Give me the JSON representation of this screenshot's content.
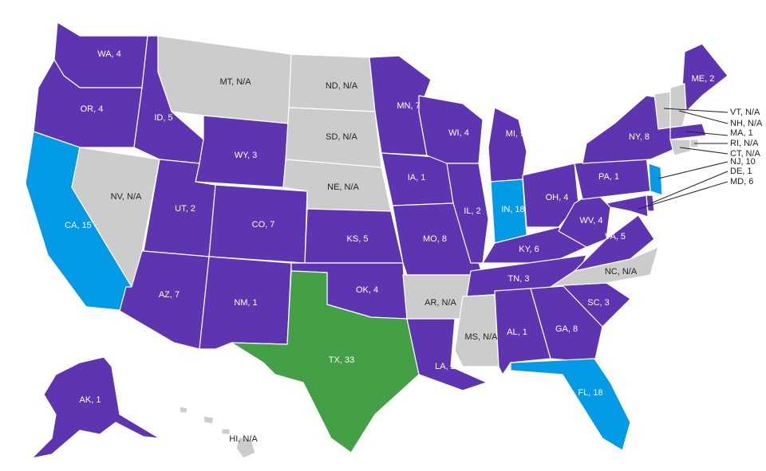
{
  "colors": {
    "purple": "#5e35b1",
    "gray": "#cccccc",
    "blue": "#039be5",
    "green": "#43a047"
  },
  "states": {
    "WA": {
      "label": "WA, 4",
      "fill": "purple"
    },
    "OR": {
      "label": "OR, 4",
      "fill": "purple"
    },
    "CA": {
      "label": "CA, 15",
      "fill": "blue"
    },
    "ID": {
      "label": "ID, 5",
      "fill": "purple"
    },
    "NV": {
      "label": "NV, N/A",
      "fill": "gray"
    },
    "MT": {
      "label": "MT, N/A",
      "fill": "gray"
    },
    "WY": {
      "label": "WY, 3",
      "fill": "purple"
    },
    "UT": {
      "label": "UT, 2",
      "fill": "purple"
    },
    "AZ": {
      "label": "AZ, 7",
      "fill": "purple"
    },
    "CO": {
      "label": "CO, 7",
      "fill": "purple"
    },
    "NM": {
      "label": "NM, 1",
      "fill": "purple"
    },
    "ND": {
      "label": "ND, N/A",
      "fill": "gray"
    },
    "SD": {
      "label": "SD, N/A",
      "fill": "gray"
    },
    "NE": {
      "label": "NE, N/A",
      "fill": "gray"
    },
    "KS": {
      "label": "KS, 5",
      "fill": "purple"
    },
    "OK": {
      "label": "OK, 4",
      "fill": "purple"
    },
    "TX": {
      "label": "TX, 33",
      "fill": "green"
    },
    "MN": {
      "label": "MN, 7",
      "fill": "purple"
    },
    "IA": {
      "label": "IA, 1",
      "fill": "purple"
    },
    "MO": {
      "label": "MO, 8",
      "fill": "purple"
    },
    "AR": {
      "label": "AR, N/A",
      "fill": "gray"
    },
    "LA": {
      "label": "LA, 2",
      "fill": "purple"
    },
    "WI": {
      "label": "WI, 4",
      "fill": "purple"
    },
    "IL": {
      "label": "IL, 2",
      "fill": "purple"
    },
    "MI": {
      "label": "MI, 9",
      "fill": "purple"
    },
    "IN": {
      "label": "IN, 18",
      "fill": "blue"
    },
    "OH": {
      "label": "OH, 4",
      "fill": "purple"
    },
    "KY": {
      "label": "KY, 6",
      "fill": "purple"
    },
    "TN": {
      "label": "TN, 3",
      "fill": "purple"
    },
    "MS": {
      "label": "MS, N/A",
      "fill": "gray"
    },
    "AL": {
      "label": "AL, 1",
      "fill": "purple"
    },
    "GA": {
      "label": "GA, 8",
      "fill": "purple"
    },
    "FL": {
      "label": "FL, 18",
      "fill": "blue"
    },
    "SC": {
      "label": "SC, 3",
      "fill": "purple"
    },
    "NC": {
      "label": "NC, N/A",
      "fill": "gray"
    },
    "VA": {
      "label": "VA, 5",
      "fill": "purple"
    },
    "WV": {
      "label": "WV, 4",
      "fill": "purple"
    },
    "PA": {
      "label": "PA, 1",
      "fill": "purple"
    },
    "NY": {
      "label": "NY, 8",
      "fill": "purple"
    },
    "ME": {
      "label": "ME, 2",
      "fill": "purple"
    },
    "VT": {
      "label": "VT, N/A",
      "fill": "gray"
    },
    "NH": {
      "label": "NH, N/A",
      "fill": "gray"
    },
    "MA": {
      "label": "MA, 1",
      "fill": "purple"
    },
    "RI": {
      "label": "RI, N/A",
      "fill": "gray"
    },
    "CT": {
      "label": "CT, N/A",
      "fill": "gray"
    },
    "NJ": {
      "label": "NJ, 10",
      "fill": "blue"
    },
    "DE": {
      "label": "DE, 1",
      "fill": "purple"
    },
    "MD": {
      "label": "MD, 6",
      "fill": "purple"
    },
    "AK": {
      "label": "AK, 1",
      "fill": "purple"
    },
    "HI": {
      "label": "HI, N/A",
      "fill": "gray"
    }
  }
}
